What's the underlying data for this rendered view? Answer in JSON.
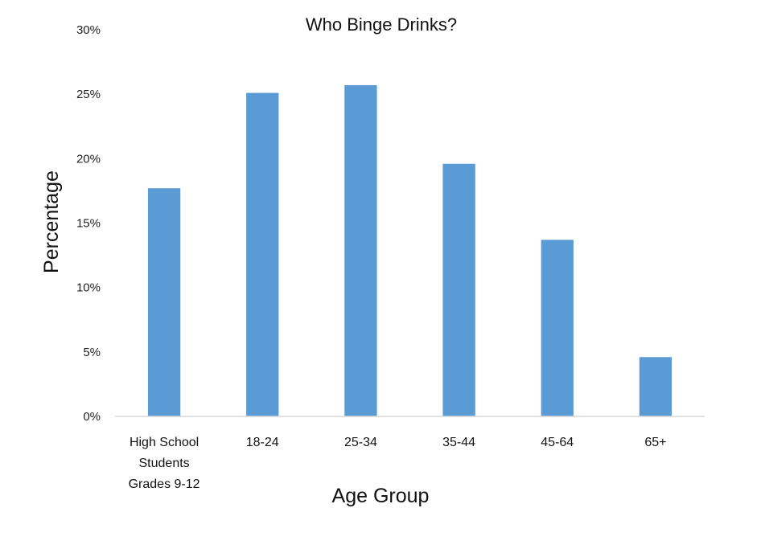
{
  "chart_data": {
    "type": "bar",
    "title": "Who Binge Drinks?",
    "xlabel": "Age Group",
    "ylabel": "Percentage",
    "categories": [
      [
        "High School",
        "Students",
        "Grades 9-12"
      ],
      [
        "18-24"
      ],
      [
        "25-34"
      ],
      [
        "35-44"
      ],
      [
        "45-64"
      ],
      [
        "65+"
      ]
    ],
    "values": [
      17.7,
      25.1,
      25.7,
      19.6,
      13.7,
      4.6
    ],
    "ylim": [
      0,
      30
    ],
    "yticks": [
      0,
      5,
      10,
      15,
      20,
      25,
      30
    ],
    "ytick_labels": [
      "0%",
      "5%",
      "10%",
      "15%",
      "20%",
      "25%",
      "30%"
    ],
    "grid": false,
    "legend": "none",
    "bar_color": "#5B9BD5",
    "axis_color": "#D9D9D9"
  }
}
